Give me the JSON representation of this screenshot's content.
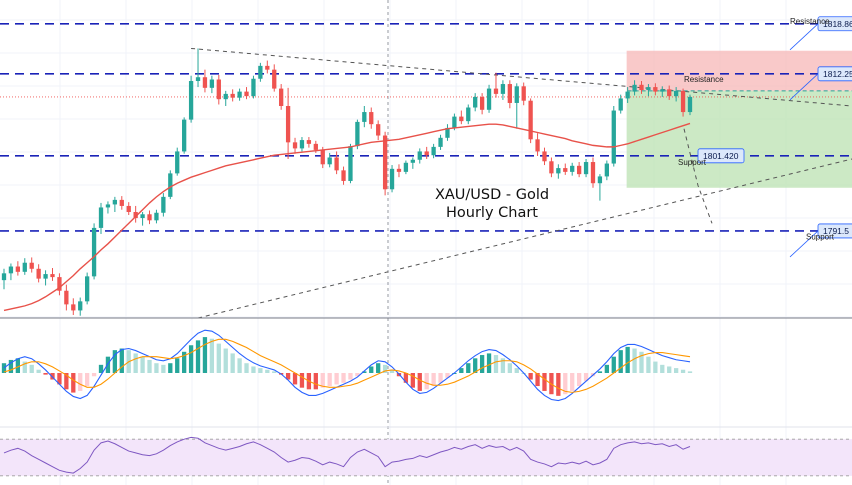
{
  "chart_data": [
    {
      "type": "candlestick",
      "title": "XAU/USD - Gold",
      "subtitle": "Hourly Chart",
      "ylim": [
        1780,
        1822
      ],
      "price_tags": [
        {
          "value": 1818.86,
          "label": "1818.86",
          "side": "right"
        },
        {
          "value": 1812.254,
          "label": "1812.254",
          "side": "right"
        },
        {
          "value": 1801.42,
          "label": "1801.420",
          "side": "inline"
        },
        {
          "value": 1791.5,
          "label": "1791.5",
          "side": "right"
        }
      ],
      "horizontal_levels": [
        1818.86,
        1812.254,
        1801.42,
        1791.5
      ],
      "level_labels": [
        {
          "text": "Resistance",
          "value": 1818.86
        },
        {
          "text": "Resistance",
          "value": 1811.2
        },
        {
          "text": "Support",
          "value": 1800.2
        },
        {
          "text": "Support",
          "value": 1790.4
        }
      ],
      "colors": {
        "up": "#26a69a",
        "down": "#ef5350",
        "ma": "#e8524a",
        "level": "#1a23b8",
        "tag_bg": "#dce8fb",
        "tag_border": "#2962ff"
      },
      "ohlc": [
        [
          1785.0,
          1786.5,
          1783.8,
          1785.9
        ],
        [
          1785.9,
          1787.2,
          1785.0,
          1786.8
        ],
        [
          1786.8,
          1787.5,
          1785.6,
          1786.1
        ],
        [
          1786.1,
          1787.9,
          1785.7,
          1787.3
        ],
        [
          1787.3,
          1788.0,
          1786.0,
          1786.5
        ],
        [
          1786.5,
          1787.1,
          1784.7,
          1785.2
        ],
        [
          1785.2,
          1786.3,
          1784.3,
          1785.8
        ],
        [
          1785.8,
          1786.6,
          1784.9,
          1785.4
        ],
        [
          1785.4,
          1785.9,
          1783.0,
          1783.6
        ],
        [
          1783.6,
          1784.4,
          1781.0,
          1781.8
        ],
        [
          1781.8,
          1782.6,
          1780.4,
          1781.0
        ],
        [
          1781.0,
          1782.7,
          1780.3,
          1782.2
        ],
        [
          1782.2,
          1786.0,
          1781.8,
          1785.5
        ],
        [
          1785.5,
          1792.5,
          1785.1,
          1791.9
        ],
        [
          1791.9,
          1795.2,
          1791.1,
          1794.6
        ],
        [
          1794.6,
          1795.4,
          1793.8,
          1795.0
        ],
        [
          1795.0,
          1796.0,
          1794.0,
          1795.6
        ],
        [
          1795.6,
          1796.1,
          1794.3,
          1794.8
        ],
        [
          1794.8,
          1795.3,
          1793.6,
          1794.0
        ],
        [
          1794.0,
          1794.8,
          1792.6,
          1793.2
        ],
        [
          1793.2,
          1794.0,
          1792.2,
          1793.7
        ],
        [
          1793.7,
          1794.2,
          1792.4,
          1792.9
        ],
        [
          1792.9,
          1794.3,
          1792.5,
          1793.9
        ],
        [
          1793.9,
          1796.5,
          1793.4,
          1796.0
        ],
        [
          1796.0,
          1799.5,
          1795.7,
          1799.1
        ],
        [
          1799.1,
          1802.5,
          1798.8,
          1802.0
        ],
        [
          1802.0,
          1806.5,
          1801.7,
          1806.2
        ],
        [
          1806.2,
          1812.0,
          1805.8,
          1811.3
        ],
        [
          1811.3,
          1815.6,
          1810.5,
          1811.8
        ],
        [
          1811.8,
          1812.8,
          1809.8,
          1810.4
        ],
        [
          1810.4,
          1812.0,
          1809.7,
          1811.5
        ],
        [
          1811.5,
          1812.1,
          1808.2,
          1808.9
        ],
        [
          1808.9,
          1810.0,
          1808.0,
          1809.6
        ],
        [
          1809.6,
          1810.2,
          1808.6,
          1809.1
        ],
        [
          1809.1,
          1810.3,
          1808.7,
          1809.9
        ],
        [
          1809.9,
          1810.5,
          1808.9,
          1809.3
        ],
        [
          1809.3,
          1812.0,
          1809.0,
          1811.6
        ],
        [
          1811.6,
          1813.7,
          1811.2,
          1813.3
        ],
        [
          1813.3,
          1814.0,
          1812.3,
          1812.8
        ],
        [
          1812.8,
          1813.5,
          1809.9,
          1810.3
        ],
        [
          1810.3,
          1810.9,
          1807.5,
          1808.0
        ],
        [
          1808.0,
          1810.4,
          1801.0,
          1803.2
        ],
        [
          1803.2,
          1803.8,
          1801.7,
          1802.4
        ],
        [
          1802.4,
          1803.9,
          1802.0,
          1803.5
        ],
        [
          1803.5,
          1803.9,
          1802.5,
          1803.0
        ],
        [
          1803.0,
          1803.4,
          1801.8,
          1802.2
        ],
        [
          1802.2,
          1802.6,
          1799.8,
          1800.3
        ],
        [
          1800.3,
          1801.8,
          1799.9,
          1801.2
        ],
        [
          1801.2,
          1802.0,
          1799.0,
          1799.5
        ],
        [
          1799.5,
          1800.0,
          1797.6,
          1798.1
        ],
        [
          1798.1,
          1803.0,
          1797.8,
          1802.7
        ],
        [
          1802.7,
          1806.2,
          1802.3,
          1805.9
        ],
        [
          1805.9,
          1808.0,
          1805.2,
          1807.2
        ],
        [
          1807.2,
          1807.8,
          1805.0,
          1805.6
        ],
        [
          1805.6,
          1806.1,
          1803.5,
          1804.1
        ],
        [
          1804.1,
          1804.6,
          1796.2,
          1797.0
        ],
        [
          1797.0,
          1800.2,
          1796.6,
          1799.7
        ],
        [
          1799.7,
          1800.3,
          1798.6,
          1799.3
        ],
        [
          1799.3,
          1800.8,
          1799.0,
          1800.5
        ],
        [
          1800.5,
          1801.2,
          1799.7,
          1800.9
        ],
        [
          1800.9,
          1802.4,
          1800.4,
          1802.0
        ],
        [
          1802.0,
          1802.6,
          1801.0,
          1801.5
        ],
        [
          1801.5,
          1803.0,
          1801.1,
          1802.6
        ],
        [
          1802.6,
          1804.2,
          1802.2,
          1803.8
        ],
        [
          1803.8,
          1805.6,
          1803.4,
          1805.1
        ],
        [
          1805.1,
          1807.0,
          1804.8,
          1806.6
        ],
        [
          1806.6,
          1807.4,
          1805.6,
          1806.0
        ],
        [
          1806.0,
          1808.2,
          1805.6,
          1807.8
        ],
        [
          1807.8,
          1809.7,
          1807.3,
          1809.2
        ],
        [
          1809.2,
          1809.7,
          1806.9,
          1807.5
        ],
        [
          1807.5,
          1810.8,
          1807.1,
          1810.3
        ],
        [
          1810.3,
          1812.4,
          1809.1,
          1809.6
        ],
        [
          1809.6,
          1811.4,
          1808.8,
          1810.9
        ],
        [
          1810.9,
          1811.4,
          1807.7,
          1808.4
        ],
        [
          1808.4,
          1811.0,
          1805.0,
          1810.6
        ],
        [
          1810.6,
          1811.1,
          1808.1,
          1808.7
        ],
        [
          1808.7,
          1809.0,
          1803.1,
          1803.6
        ],
        [
          1803.6,
          1804.4,
          1801.4,
          1802.0
        ],
        [
          1802.0,
          1802.5,
          1800.2,
          1800.7
        ],
        [
          1800.7,
          1801.2,
          1798.6,
          1799.1
        ],
        [
          1799.1,
          1800.3,
          1798.4,
          1799.8
        ],
        [
          1799.8,
          1800.4,
          1798.9,
          1799.3
        ],
        [
          1799.3,
          1800.5,
          1798.8,
          1800.1
        ],
        [
          1800.1,
          1800.6,
          1798.6,
          1799.0
        ],
        [
          1799.0,
          1801.0,
          1798.6,
          1800.6
        ],
        [
          1800.6,
          1801.2,
          1797.2,
          1797.8
        ],
        [
          1797.8,
          1799.0,
          1795.5,
          1798.7
        ],
        [
          1798.7,
          1800.8,
          1798.2,
          1800.4
        ],
        [
          1800.4,
          1808.0,
          1800.0,
          1807.4
        ],
        [
          1807.4,
          1809.5,
          1807.0,
          1809.0
        ],
        [
          1809.0,
          1810.5,
          1808.4,
          1809.9
        ],
        [
          1809.9,
          1811.4,
          1809.4,
          1810.8
        ],
        [
          1810.8,
          1811.3,
          1809.6,
          1810.1
        ],
        [
          1810.1,
          1810.9,
          1809.3,
          1810.5
        ],
        [
          1810.5,
          1811.0,
          1809.4,
          1809.9
        ],
        [
          1809.9,
          1810.6,
          1809.2,
          1810.2
        ],
        [
          1810.2,
          1810.7,
          1808.8,
          1809.3
        ],
        [
          1809.3,
          1810.5,
          1808.6,
          1810.0
        ],
        [
          1810.0,
          1810.3,
          1806.6,
          1807.2
        ],
        [
          1807.2,
          1809.5,
          1806.8,
          1809.2
        ]
      ],
      "ma": [
        1781.0,
        1781.2,
        1781.4,
        1781.6,
        1781.9,
        1782.3,
        1782.8,
        1783.4,
        1784.0,
        1784.8,
        1785.6,
        1786.5,
        1787.3,
        1788.1,
        1789.0,
        1789.8,
        1790.7,
        1791.6,
        1792.5,
        1793.4,
        1794.3,
        1795.2,
        1796.0,
        1796.7,
        1797.3,
        1797.8,
        1798.2,
        1798.6,
        1798.9,
        1799.2,
        1799.5,
        1799.8,
        1800.1,
        1800.3,
        1800.5,
        1800.7,
        1800.9,
        1801.1,
        1801.3,
        1801.5,
        1801.6,
        1801.7,
        1801.8,
        1801.9,
        1802.0,
        1802.1,
        1802.2,
        1802.3,
        1802.4,
        1802.5,
        1802.6,
        1802.8,
        1803.0,
        1803.2,
        1803.3,
        1803.4,
        1803.5,
        1803.6,
        1803.8,
        1804.0,
        1804.2,
        1804.4,
        1804.6,
        1804.8,
        1805.0,
        1805.1,
        1805.2,
        1805.3,
        1805.4,
        1805.5,
        1805.6,
        1805.6,
        1805.5,
        1805.3,
        1805.1,
        1804.9,
        1804.7,
        1804.5,
        1804.3,
        1804.1,
        1803.9,
        1803.7,
        1803.4,
        1803.2,
        1803.0,
        1802.8,
        1802.7,
        1802.6,
        1802.6,
        1802.8,
        1803.0,
        1803.3,
        1803.6,
        1803.9,
        1804.2,
        1804.5,
        1804.8,
        1805.1,
        1805.4,
        1805.7
      ]
    },
    {
      "type": "macd",
      "histogram": [
        0.6,
        0.8,
        0.9,
        0.7,
        0.5,
        0.2,
        -0.1,
        -0.4,
        -0.7,
        -1.0,
        -1.2,
        -1.1,
        -0.8,
        -0.2,
        0.5,
        1.0,
        1.4,
        1.5,
        1.4,
        1.2,
        1.0,
        0.8,
        0.6,
        0.5,
        0.6,
        0.9,
        1.3,
        1.7,
        2.0,
        2.2,
        2.1,
        1.8,
        1.5,
        1.2,
        0.9,
        0.6,
        0.4,
        0.3,
        0.2,
        0.1,
        -0.1,
        -0.4,
        -0.7,
        -0.9,
        -1.0,
        -1.0,
        -0.9,
        -0.8,
        -0.7,
        -0.6,
        -0.4,
        -0.2,
        0.1,
        0.4,
        0.6,
        0.5,
        0.2,
        -0.2,
        -0.6,
        -0.9,
        -1.1,
        -1.0,
        -0.8,
        -0.6,
        -0.3,
        0.0,
        0.3,
        0.6,
        0.9,
        1.1,
        1.2,
        1.1,
        0.9,
        0.6,
        0.3,
        0.0,
        -0.4,
        -0.8,
        -1.1,
        -1.3,
        -1.4,
        -1.3,
        -1.1,
        -0.8,
        -0.5,
        -0.2,
        0.1,
        0.5,
        1.0,
        1.4,
        1.6,
        1.5,
        1.3,
        1.0,
        0.7,
        0.5,
        0.4,
        0.3,
        0.2,
        0.1
      ],
      "macd": [
        0.5,
        1.0,
        1.4,
        1.6,
        1.4,
        0.9,
        0.3,
        -0.4,
        -1.1,
        -1.8,
        -2.3,
        -2.5,
        -2.2,
        -1.3,
        -0.2,
        0.9,
        1.8,
        2.3,
        2.4,
        2.2,
        1.9,
        1.6,
        1.3,
        1.2,
        1.4,
        1.9,
        2.6,
        3.3,
        3.9,
        4.2,
        4.1,
        3.7,
        3.1,
        2.5,
        1.9,
        1.4,
        1.0,
        0.7,
        0.5,
        0.3,
        -0.1,
        -0.7,
        -1.4,
        -1.9,
        -2.2,
        -2.2,
        -2.0,
        -1.7,
        -1.4,
        -1.1,
        -0.8,
        -0.4,
        0.2,
        0.8,
        1.2,
        1.1,
        0.6,
        -0.1,
        -0.9,
        -1.6,
        -2.0,
        -1.9,
        -1.5,
        -1.0,
        -0.5,
        0.0,
        0.6,
        1.2,
        1.7,
        2.1,
        2.3,
        2.2,
        1.8,
        1.3,
        0.7,
        0.0,
        -0.8,
        -1.6,
        -2.2,
        -2.6,
        -2.7,
        -2.5,
        -2.0,
        -1.4,
        -0.8,
        -0.2,
        0.4,
        1.1,
        1.9,
        2.5,
        2.8,
        2.8,
        2.6,
        2.3,
        2.0,
        1.7,
        1.5,
        1.3,
        1.2,
        1.1
      ],
      "signal": [
        0.1,
        0.3,
        0.6,
        0.9,
        1.1,
        1.1,
        0.9,
        0.6,
        0.2,
        -0.2,
        -0.7,
        -1.1,
        -1.4,
        -1.4,
        -1.1,
        -0.6,
        0.0,
        0.6,
        1.1,
        1.4,
        1.6,
        1.6,
        1.6,
        1.5,
        1.4,
        1.5,
        1.7,
        2.0,
        2.4,
        2.8,
        3.1,
        3.3,
        3.3,
        3.1,
        2.8,
        2.5,
        2.1,
        1.7,
        1.4,
        1.1,
        0.8,
        0.4,
        0.0,
        -0.4,
        -0.8,
        -1.1,
        -1.3,
        -1.4,
        -1.4,
        -1.3,
        -1.2,
        -1.0,
        -0.7,
        -0.4,
        -0.1,
        0.2,
        0.3,
        0.2,
        0.0,
        -0.3,
        -0.7,
        -1.0,
        -1.2,
        -1.2,
        -1.1,
        -0.9,
        -0.6,
        -0.3,
        0.1,
        0.5,
        0.8,
        1.1,
        1.2,
        1.2,
        1.1,
        0.8,
        0.4,
        -0.1,
        -0.6,
        -1.1,
        -1.5,
        -1.8,
        -1.9,
        -1.8,
        -1.6,
        -1.3,
        -0.9,
        -0.5,
        0.0,
        0.5,
        1.0,
        1.4,
        1.7,
        1.9,
        2.0,
        2.0,
        1.9,
        1.8,
        1.7,
        1.6
      ],
      "colors": {
        "macd": "#2962ff",
        "signal": "#ff9800",
        "hist_up_strong": "#26a69a",
        "hist_up_weak": "#b2dfdb",
        "hist_down_strong": "#ef5350",
        "hist_down_weak": "#ffcdd2"
      }
    },
    {
      "type": "line",
      "indicator": "rsi",
      "ylim": [
        20,
        80
      ],
      "band": [
        30,
        70
      ],
      "values": [
        55,
        58,
        60,
        57,
        52,
        48,
        44,
        40,
        36,
        34,
        33,
        38,
        45,
        58,
        66,
        68,
        65,
        61,
        57,
        55,
        53,
        52,
        54,
        58,
        63,
        67,
        70,
        72,
        71,
        66,
        63,
        60,
        58,
        60,
        62,
        65,
        67,
        64,
        60,
        56,
        50,
        45,
        47,
        50,
        49,
        46,
        42,
        45,
        43,
        40,
        50,
        56,
        59,
        55,
        51,
        40,
        45,
        46,
        48,
        49,
        52,
        50,
        53,
        56,
        58,
        61,
        59,
        62,
        64,
        60,
        63,
        61,
        62,
        58,
        61,
        57,
        48,
        45,
        43,
        40,
        44,
        43,
        45,
        43,
        46,
        42,
        44,
        48,
        60,
        64,
        66,
        67,
        65,
        66,
        64,
        65,
        62,
        64,
        59,
        62
      ],
      "colors": {
        "line": "#7e57c2",
        "band_fill": "#f3e5fa",
        "band_border": "#9e9e9e"
      }
    }
  ]
}
